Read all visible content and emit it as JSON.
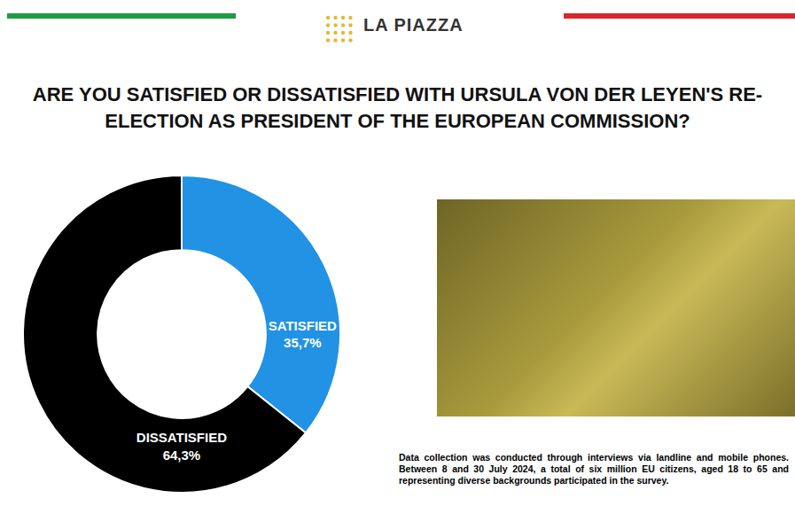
{
  "header": {
    "brand": "LA PIAZZA"
  },
  "chart_data": {
    "type": "pie",
    "title": "ARE YOU SATISFIED OR DISSATISFIED WITH URSULA VON DER LEYEN'S RE-ELECTION AS PRESIDENT OF THE EUROPEAN COMMISSION?",
    "categories": [
      "SATISFIED",
      "DISSATISFIED"
    ],
    "values": [
      35.7,
      64.3
    ],
    "value_labels": [
      "35,7%",
      "64,3%"
    ],
    "colors": [
      "#2192e4",
      "#000000"
    ],
    "data_labels": true
  },
  "note": "Data collection was conducted through interviews via landline and mobile phones. Between 8 and 30 July 2024, a total of six million EU citizens, aged 18 to 65 and representing diverse backgrounds participated in the survey."
}
